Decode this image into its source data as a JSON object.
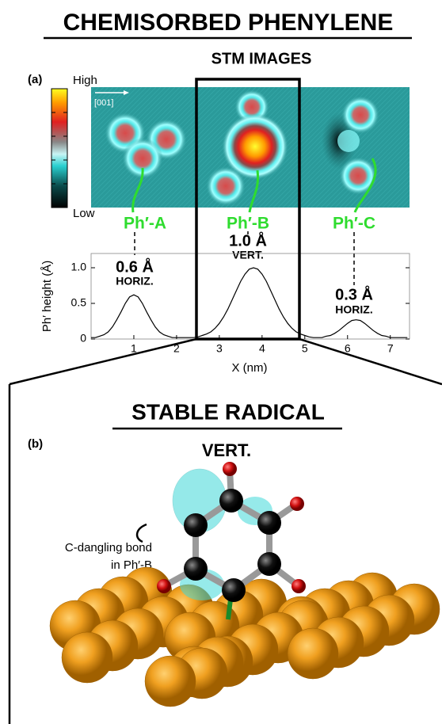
{
  "title": "CHEMISORBED PHENYLENE",
  "panel_a": {
    "label": "(a)",
    "heading": "STM IMAGES",
    "colorbar_high": "High",
    "colorbar_low": "Low",
    "direction": "[001]",
    "molecules": [
      {
        "name": "Ph′-A",
        "height": "0.6 Å",
        "orientation": "HORIZ."
      },
      {
        "name": "Ph′-B",
        "height": "1.0 Å",
        "orientation": "VERT."
      },
      {
        "name": "Ph′-C",
        "height": "0.3 Å",
        "orientation": "HORIZ."
      }
    ]
  },
  "chart_data": {
    "type": "line",
    "xlabel": "X (nm)",
    "ylabel": "Ph′ height (Å)",
    "color": "#000000",
    "xlim": [
      0,
      7.45
    ],
    "ylim": [
      0,
      1.2
    ],
    "xticks": [
      1,
      2,
      3,
      4,
      5,
      6,
      7
    ],
    "yticks": [
      0,
      0.5,
      {
        "value": 1,
        "label": "1.0"
      }
    ],
    "x": [
      0,
      0.1,
      0.2,
      0.3,
      0.4,
      0.5,
      0.6,
      0.7,
      0.8,
      0.9,
      1,
      1.1,
      1.2,
      1.3,
      1.4,
      1.5,
      1.6,
      1.7,
      1.8,
      1.9,
      2,
      2.1,
      2.2,
      2.3,
      2.4,
      2.5,
      2.6,
      2.7,
      2.8,
      2.9,
      3,
      3.1,
      3.2,
      3.3,
      3.4,
      3.5,
      3.6,
      3.7,
      3.8,
      3.9,
      4,
      4.1,
      4.2,
      4.3,
      4.4,
      4.5,
      4.6,
      4.7,
      4.8,
      4.9,
      5,
      5.1,
      5.2,
      5.3,
      5.4,
      5.5,
      5.6,
      5.7,
      5.8,
      5.9,
      6,
      6.1,
      6.2,
      6.3,
      6.4,
      6.5,
      6.6,
      6.7,
      6.8,
      6.9,
      7,
      7.1,
      7.2,
      7.3,
      7.4
    ],
    "values": [
      0.02,
      0.02,
      0.04,
      0.06,
      0.1,
      0.17,
      0.27,
      0.38,
      0.5,
      0.59,
      0.62,
      0.59,
      0.5,
      0.38,
      0.27,
      0.17,
      0.1,
      0.06,
      0.04,
      0.02,
      0.02,
      0.02,
      0.02,
      0.02,
      0.02,
      0.03,
      0.05,
      0.07,
      0.1,
      0.15,
      0.22,
      0.31,
      0.42,
      0.55,
      0.68,
      0.81,
      0.91,
      0.98,
      1,
      0.98,
      0.91,
      0.81,
      0.68,
      0.55,
      0.42,
      0.31,
      0.22,
      0.15,
      0.1,
      0.07,
      0.05,
      0.03,
      0.02,
      0.02,
      0.02,
      0.04,
      0.05,
      0.08,
      0.12,
      0.17,
      0.22,
      0.26,
      0.27,
      0.26,
      0.22,
      0.17,
      0.12,
      0.08,
      0.05,
      0.04,
      0.02,
      0.02,
      0.02,
      0.02,
      0.02
    ]
  },
  "panel_b": {
    "label": "(b)",
    "heading": "STABLE RADICAL",
    "orientation": "VERT.",
    "annotation": [
      "C-dangling bond",
      "in Ph′-B"
    ]
  }
}
